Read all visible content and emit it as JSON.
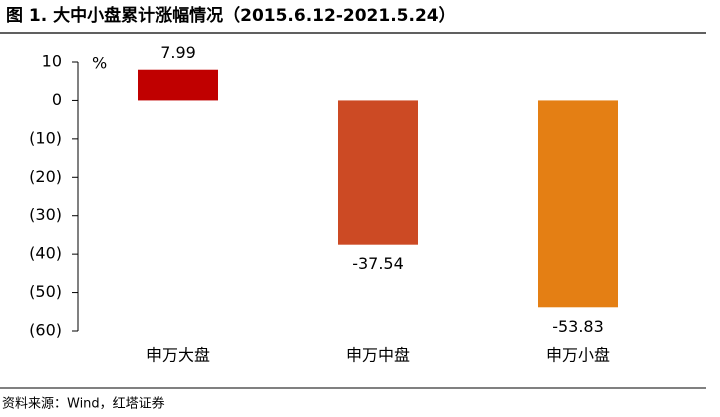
{
  "chart_data": {
    "type": "bar",
    "title": "图 1.  大中小盘累计涨幅情况（2015.6.12-2021.5.24）",
    "y_unit": "%",
    "categories": [
      "申万大盘",
      "申万中盘",
      "申万小盘"
    ],
    "values": [
      7.99,
      -37.54,
      -53.83
    ],
    "colors": [
      "#c00000",
      "#cc4a24",
      "#e47f14"
    ],
    "ylim": [
      -60,
      10
    ],
    "yticks": [
      10,
      0,
      {
        "value": -10,
        "label": "(10)"
      },
      {
        "value": -20,
        "label": "(20)"
      },
      {
        "value": -30,
        "label": "(30)"
      },
      {
        "value": -40,
        "label": "(40)"
      },
      {
        "value": -50,
        "label": "(50)"
      },
      {
        "value": -60,
        "label": "(60)"
      }
    ],
    "negative_tick_color": "#c00000",
    "source": "资料来源：Wind，红塔证券"
  }
}
